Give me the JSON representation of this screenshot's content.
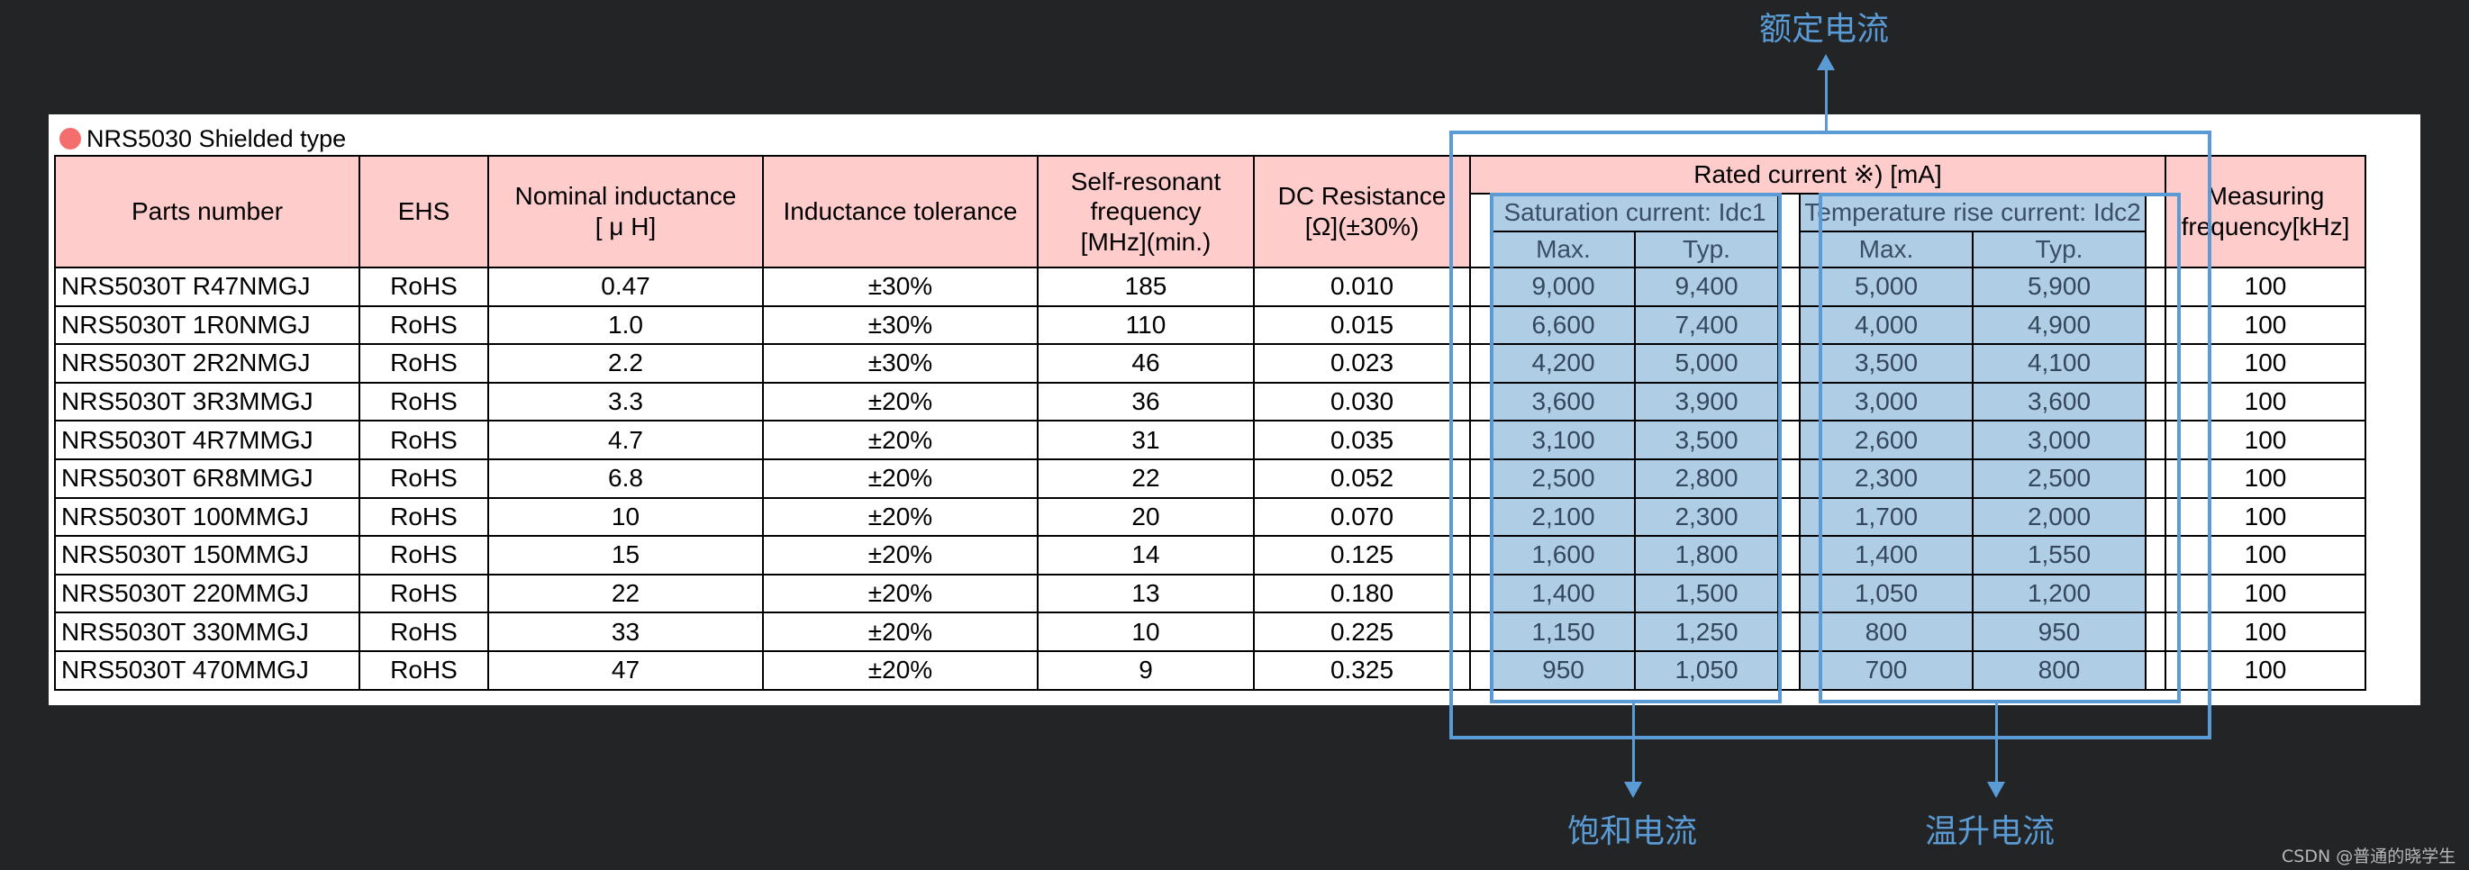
{
  "title": "NRS5030 Shielded type",
  "colors": {
    "background": "#222426",
    "header_fill": "#ffcccc",
    "highlight_fill": "#b0cde6",
    "annotation": "#5b9bd5",
    "title_dot": "#f46e6e"
  },
  "header": {
    "parts_number": "Parts number",
    "ehs": "EHS",
    "nominal_inductance_1": "Nominal inductance",
    "nominal_inductance_2": "[ μ H]",
    "inductance_tolerance": "Inductance tolerance",
    "self_resonant_1": "Self-resonant",
    "self_resonant_2": "frequency",
    "self_resonant_3": "[MHz](min.)",
    "dc_resistance_1": "DC Resistance",
    "dc_resistance_2": "[Ω](±30%)",
    "rated_current": "Rated current ※) [mA]",
    "saturation_current": "Saturation current: Idc1",
    "temperature_rise_current": "Temperature rise current: Idc2",
    "max": "Max.",
    "typ": "Typ.",
    "measuring_1": "Measuring",
    "measuring_2": "frequency[kHz]"
  },
  "rows": [
    {
      "part": "NRS5030T R47NMGJ",
      "ehs": "RoHS",
      "inductance": "0.47",
      "tolerance": "±30%",
      "srf": "185",
      "dcr": "0.010",
      "idc1_max": "9,000",
      "idc1_typ": "9,400",
      "idc2_max": "5,000",
      "idc2_typ": "5,900",
      "freq": "100"
    },
    {
      "part": "NRS5030T 1R0NMGJ",
      "ehs": "RoHS",
      "inductance": "1.0",
      "tolerance": "±30%",
      "srf": "110",
      "dcr": "0.015",
      "idc1_max": "6,600",
      "idc1_typ": "7,400",
      "idc2_max": "4,000",
      "idc2_typ": "4,900",
      "freq": "100"
    },
    {
      "part": "NRS5030T 2R2NMGJ",
      "ehs": "RoHS",
      "inductance": "2.2",
      "tolerance": "±30%",
      "srf": "46",
      "dcr": "0.023",
      "idc1_max": "4,200",
      "idc1_typ": "5,000",
      "idc2_max": "3,500",
      "idc2_typ": "4,100",
      "freq": "100"
    },
    {
      "part": "NRS5030T 3R3MMGJ",
      "ehs": "RoHS",
      "inductance": "3.3",
      "tolerance": "±20%",
      "srf": "36",
      "dcr": "0.030",
      "idc1_max": "3,600",
      "idc1_typ": "3,900",
      "idc2_max": "3,000",
      "idc2_typ": "3,600",
      "freq": "100"
    },
    {
      "part": "NRS5030T 4R7MMGJ",
      "ehs": "RoHS",
      "inductance": "4.7",
      "tolerance": "±20%",
      "srf": "31",
      "dcr": "0.035",
      "idc1_max": "3,100",
      "idc1_typ": "3,500",
      "idc2_max": "2,600",
      "idc2_typ": "3,000",
      "freq": "100"
    },
    {
      "part": "NRS5030T 6R8MMGJ",
      "ehs": "RoHS",
      "inductance": "6.8",
      "tolerance": "±20%",
      "srf": "22",
      "dcr": "0.052",
      "idc1_max": "2,500",
      "idc1_typ": "2,800",
      "idc2_max": "2,300",
      "idc2_typ": "2,500",
      "freq": "100"
    },
    {
      "part": "NRS5030T 100MMGJ",
      "ehs": "RoHS",
      "inductance": "10",
      "tolerance": "±20%",
      "srf": "20",
      "dcr": "0.070",
      "idc1_max": "2,100",
      "idc1_typ": "2,300",
      "idc2_max": "1,700",
      "idc2_typ": "2,000",
      "freq": "100"
    },
    {
      "part": "NRS5030T 150MMGJ",
      "ehs": "RoHS",
      "inductance": "15",
      "tolerance": "±20%",
      "srf": "14",
      "dcr": "0.125",
      "idc1_max": "1,600",
      "idc1_typ": "1,800",
      "idc2_max": "1,400",
      "idc2_typ": "1,550",
      "freq": "100"
    },
    {
      "part": "NRS5030T 220MMGJ",
      "ehs": "RoHS",
      "inductance": "22",
      "tolerance": "±20%",
      "srf": "13",
      "dcr": "0.180",
      "idc1_max": "1,400",
      "idc1_typ": "1,500",
      "idc2_max": "1,050",
      "idc2_typ": "1,200",
      "freq": "100"
    },
    {
      "part": "NRS5030T 330MMGJ",
      "ehs": "RoHS",
      "inductance": "33",
      "tolerance": "±20%",
      "srf": "10",
      "dcr": "0.225",
      "idc1_max": "1,150",
      "idc1_typ": "1,250",
      "idc2_max": "800",
      "idc2_typ": "950",
      "freq": "100"
    },
    {
      "part": "NRS5030T 470MMGJ",
      "ehs": "RoHS",
      "inductance": "47",
      "tolerance": "±20%",
      "srf": "9",
      "dcr": "0.325",
      "idc1_max": "950",
      "idc1_typ": "1,050",
      "idc2_max": "700",
      "idc2_typ": "800",
      "freq": "100"
    }
  ],
  "annotations": {
    "rated": "额定电流",
    "saturation": "饱和电流",
    "temperature": "温升电流"
  },
  "watermark": "CSDN @普通的晓学生"
}
